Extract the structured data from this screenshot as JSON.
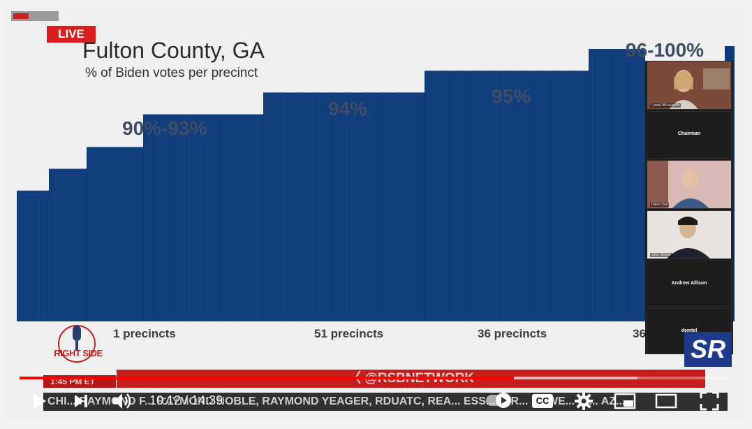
{
  "player": {
    "live_label": "LIVE",
    "time_display": "10:12 / 14:39",
    "progress_fraction": 0.6965,
    "buffered_fraction": 0.87,
    "cc_label": "CC",
    "icons": [
      "play-icon",
      "next-icon",
      "volume-icon",
      "autoplay-toggle",
      "cc-icon",
      "settings-gear-icon",
      "miniplayer-icon",
      "theater-icon",
      "fullscreen-icon"
    ]
  },
  "slide": {
    "title": "Fulton County, GA",
    "subtitle": "% of Biden votes per precinct",
    "groups": [
      {
        "pct_label": "90%-93%",
        "precinct_label": "1 precincts"
      },
      {
        "pct_label": "94%",
        "precinct_label": "51 precincts"
      },
      {
        "pct_label": "95%",
        "precinct_label": "36 precincts"
      },
      {
        "pct_label": "96-100%",
        "precinct_label": "36"
      }
    ]
  },
  "chart_data": {
    "type": "bar",
    "title": "Fulton County, GA",
    "subtitle": "% of Biden votes per precinct",
    "bar_color": "#0d3b7a",
    "steps": [
      {
        "group": "90%-93%",
        "relative_height": 0.36
      },
      {
        "group": "90%-93%",
        "relative_height": 0.42
      },
      {
        "group": "90%-93%",
        "relative_height": 0.48
      },
      {
        "group": "90%-93%",
        "relative_height": 0.57
      },
      {
        "group": "94%",
        "relative_height": 0.63
      },
      {
        "group": "95%",
        "relative_height": 0.69
      },
      {
        "group": "96-100%",
        "relative_height": 0.75
      }
    ]
  },
  "broadcast": {
    "time_label": "1:45 PM ET",
    "handle": "@RSBNETWORK",
    "ticker": "CHI... RAYMOND F... RAYMOND NOBLE, RAYMOND YEAGER, RDUATC, REA... ESS... J, R... POWE... RI... AZ...",
    "logo_text": "RIGHT SIDE",
    "corner_logo": "SR"
  },
  "participants": [
    {
      "label": "Chairman",
      "tag": "Lynda McLaughlin",
      "bg": "#7a4a3a"
    },
    {
      "label": "",
      "tag": "Dave Cole",
      "bg": "#b9a49b"
    },
    {
      "label": "Andrew Allison",
      "tag": "John Sheets",
      "bg": "#5a4d48"
    },
    {
      "label": "demtel",
      "tag": "",
      "bg": "#1c1c1c"
    }
  ]
}
